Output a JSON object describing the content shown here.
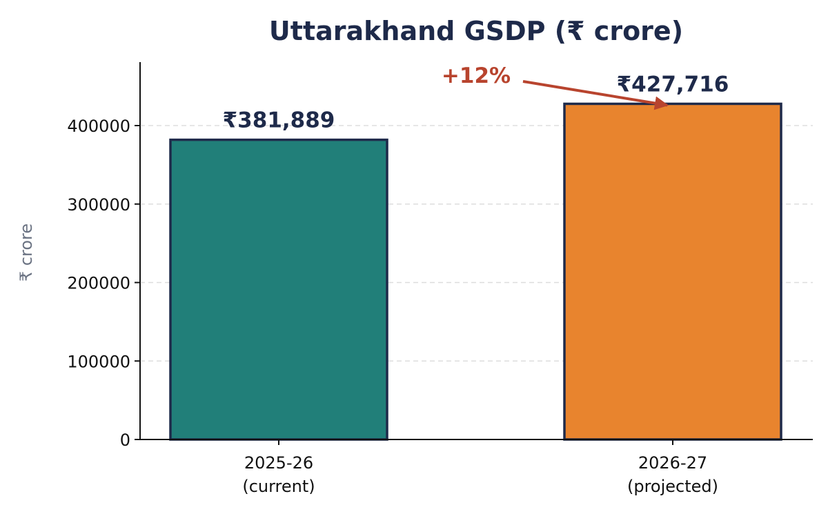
{
  "chart_data": {
    "type": "bar",
    "title": "Uttarakhand GSDP  (₹ crore)",
    "xlabel": "",
    "ylabel": "₹ crore",
    "categories": [
      [
        "2025-26",
        "(current)"
      ],
      [
        "2026-27",
        "(projected)"
      ]
    ],
    "values": [
      381889,
      427716
    ],
    "data_labels": [
      "₹381,889",
      "₹427,716"
    ],
    "bar_colors": [
      "#217f79",
      "#e8842e"
    ],
    "bar_edge_color": "#1e2a4a",
    "ylim": [
      0,
      480000
    ],
    "yticks": [
      0,
      100000,
      200000,
      300000,
      400000
    ],
    "ytick_labels": [
      "0",
      "100000",
      "200000",
      "300000",
      "400000"
    ],
    "grid": "horizontal dashed",
    "annotation": {
      "text": "+12%",
      "color": "#b8442e",
      "target_bar": 1
    },
    "colors": {
      "title": "#1e2a4a",
      "ylabel": "#6b7383",
      "data_label": "#1e2a4a",
      "grid": "#dddddd",
      "axis": "#111111"
    }
  }
}
